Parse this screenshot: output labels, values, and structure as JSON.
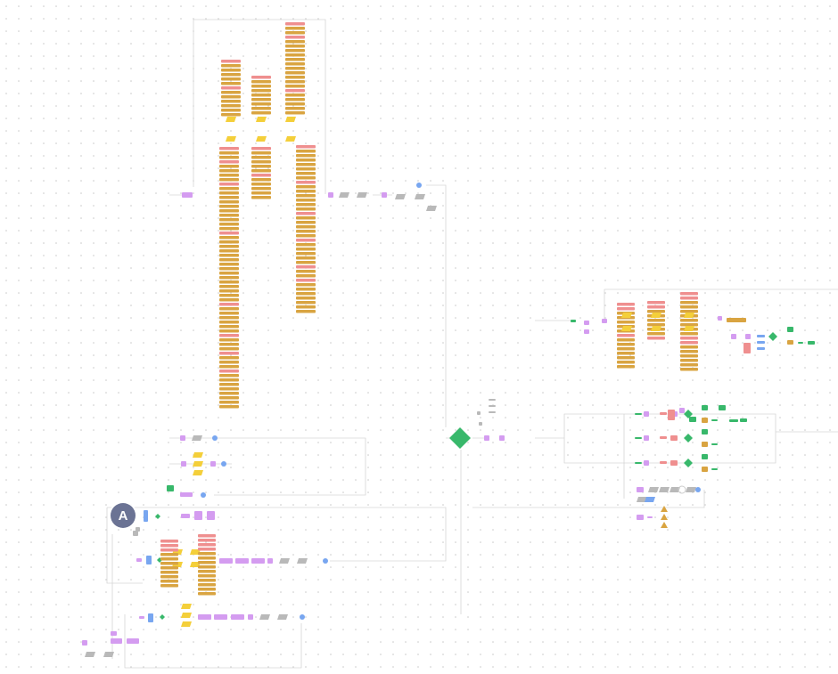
{
  "avatar": {
    "label": "A"
  }
}
